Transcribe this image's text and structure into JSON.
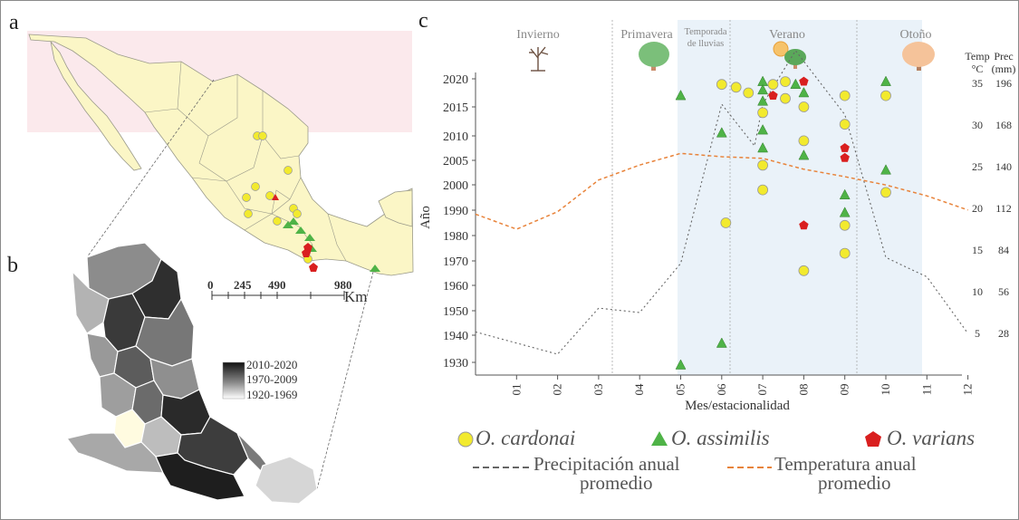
{
  "panel_labels": {
    "a": "a",
    "b": "b",
    "c": "c"
  },
  "map_a": {
    "scale_ticks": [
      "0",
      "245",
      "490",
      "980"
    ],
    "scale_unit": "Km"
  },
  "map_b": {
    "legend": [
      "2010-2020",
      "1970-2009",
      "1920-1969"
    ]
  },
  "colors": {
    "cardonai": "#f2ea2e",
    "assimilis": "#4fb347",
    "varians": "#d91f1f",
    "precip_line": "#666666",
    "temp_line": "#e8833a",
    "rainy_shade": "#eaf2f9",
    "land": "#fbf6c6",
    "us_land": "#fbe9ec"
  },
  "chart_data": {
    "type": "scatter",
    "title": "",
    "xlabel": "Mes/estacionalidad",
    "ylabel": "Año",
    "x_ticks": [
      "01",
      "02",
      "03",
      "04",
      "05",
      "06",
      "07",
      "08",
      "09",
      "10",
      "11",
      "12"
    ],
    "y_ticks": [
      1930,
      1940,
      1950,
      1960,
      1970,
      1980,
      1990,
      2000,
      2005,
      2010,
      2015,
      2020
    ],
    "right_axis": {
      "temp_header": "Temp",
      "temp_unit": "°C",
      "prec_header": "Prec",
      "prec_unit": "(mm)",
      "temp_ticks": [
        5,
        10,
        15,
        20,
        25,
        30,
        35
      ],
      "prec_ticks": [
        28,
        56,
        84,
        112,
        140,
        168,
        196
      ]
    },
    "seasons": [
      "Invierno",
      "Primavera",
      "Temporada de lluvias",
      "Verano",
      "Otoño"
    ],
    "series": [
      {
        "name": "O. cardonai",
        "marker": "circle",
        "points": [
          [
            6.0,
            2019
          ],
          [
            6.35,
            2018.5
          ],
          [
            6.65,
            2017.5
          ],
          [
            7.0,
            2014
          ],
          [
            7.0,
            2004
          ],
          [
            7.0,
            1998
          ],
          [
            7.25,
            2019
          ],
          [
            7.55,
            2019.5
          ],
          [
            7.55,
            2016.5
          ],
          [
            8.0,
            2015
          ],
          [
            8.0,
            2009
          ],
          [
            8.0,
            1966
          ],
          [
            9.0,
            2017
          ],
          [
            9.0,
            2012
          ],
          [
            9.0,
            1984
          ],
          [
            9.0,
            1973
          ],
          [
            10.0,
            2017
          ],
          [
            10.0,
            1997
          ],
          [
            6.1,
            1985
          ]
        ]
      },
      {
        "name": "O. assimilis",
        "marker": "triangle",
        "points": [
          [
            5.0,
            2017
          ],
          [
            5.0,
            1929
          ],
          [
            6.0,
            2010.5
          ],
          [
            6.0,
            1937
          ],
          [
            7.0,
            2019.5
          ],
          [
            7.0,
            2018
          ],
          [
            7.0,
            2016
          ],
          [
            7.0,
            2011
          ],
          [
            7.0,
            2007.5
          ],
          [
            7.8,
            2019
          ],
          [
            8.0,
            2017.5
          ],
          [
            8.0,
            2006
          ],
          [
            9.0,
            1996
          ],
          [
            9.0,
            1989
          ],
          [
            10.0,
            2019.5
          ],
          [
            10.0,
            2003
          ]
        ]
      },
      {
        "name": "O. varians",
        "marker": "pentagon",
        "points": [
          [
            7.25,
            2017
          ],
          [
            8.0,
            2019.5
          ],
          [
            8.0,
            1984
          ],
          [
            9.0,
            2007.5
          ],
          [
            9.0,
            2005.5
          ]
        ]
      }
    ],
    "lines": [
      {
        "name": "Precipitación anual promedio",
        "axis": "prec",
        "style": "dashed",
        "x": [
          0,
          2,
          3,
          4,
          5,
          6,
          6.8,
          7,
          7.8,
          9,
          10,
          11,
          12
        ],
        "y": [
          29,
          14,
          45,
          42,
          75,
          182,
          154,
          182,
          218,
          175,
          79,
          66,
          28
        ]
      },
      {
        "name": "Temperatura anual promedio",
        "axis": "temp",
        "style": "dashed",
        "x": [
          0,
          1,
          2,
          3,
          4,
          5,
          6,
          7,
          8,
          9,
          10,
          11,
          12
        ],
        "y": [
          19.3,
          17.5,
          19.6,
          23.4,
          25.2,
          26.6,
          26.2,
          26.0,
          24.7,
          23.8,
          22.8,
          21.5,
          19.8
        ]
      }
    ]
  },
  "legend": {
    "cardonai": "O. cardonai",
    "assimilis": "O. assimilis",
    "varians": "O. varians",
    "precip_line1": "Precipitación anual",
    "precip_line2": "promedio",
    "temp_line1": "Temperatura anual",
    "temp_line2": "promedio"
  }
}
